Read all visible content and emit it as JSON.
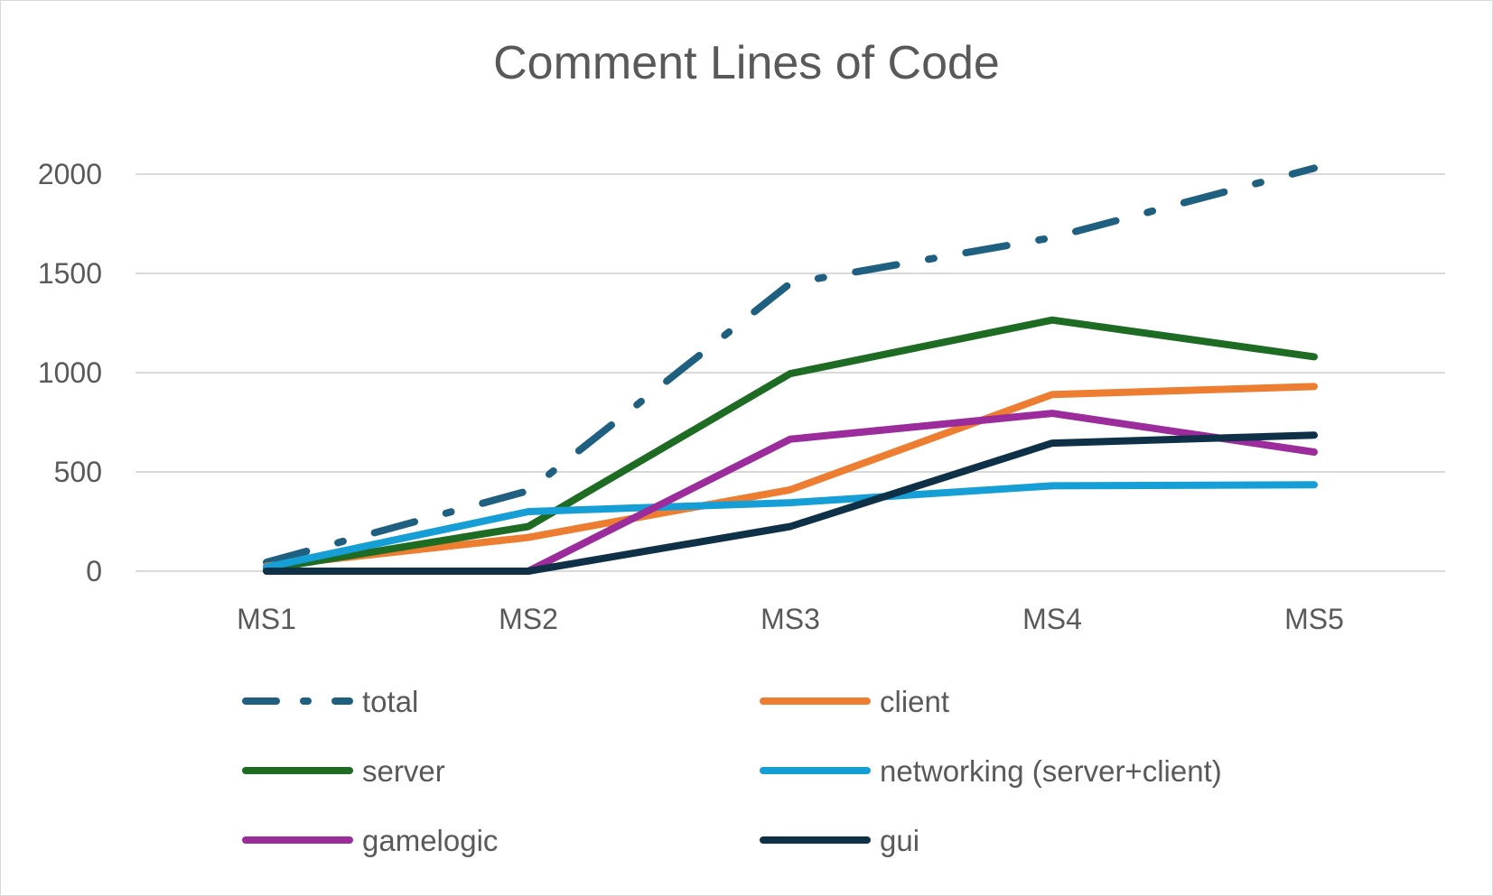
{
  "chart_data": {
    "type": "line",
    "title": "Comment Lines of Code",
    "xlabel": "",
    "ylabel": "",
    "categories": [
      "MS1",
      "MS2",
      "MS3",
      "MS4",
      "MS5"
    ],
    "y_ticks": [
      "0",
      "500",
      "1000",
      "1500",
      "2000"
    ],
    "ylim": [
      0,
      2000
    ],
    "grid": true,
    "legend_position": "bottom",
    "series": [
      {
        "name": "total",
        "values": [
          45,
          405,
          1450,
          1680,
          2030
        ],
        "color": "#1f5f7f",
        "dash": "long-dash-dot"
      },
      {
        "name": "client",
        "values": [
          25,
          170,
          410,
          890,
          930
        ],
        "color": "#ed7d31",
        "dash": "solid"
      },
      {
        "name": "server",
        "values": [
          10,
          225,
          995,
          1265,
          1080
        ],
        "color": "#1e6b23",
        "dash": "solid"
      },
      {
        "name": "networking (server+client)",
        "values": [
          20,
          300,
          345,
          430,
          435
        ],
        "color": "#159fd6",
        "dash": "solid"
      },
      {
        "name": "gamelogic",
        "values": [
          null,
          0,
          665,
          795,
          600
        ],
        "color": "#9c2b9c",
        "dash": "solid"
      },
      {
        "name": "gui",
        "values": [
          0,
          0,
          225,
          645,
          685
        ],
        "color": "#0e3148",
        "dash": "solid"
      }
    ]
  }
}
